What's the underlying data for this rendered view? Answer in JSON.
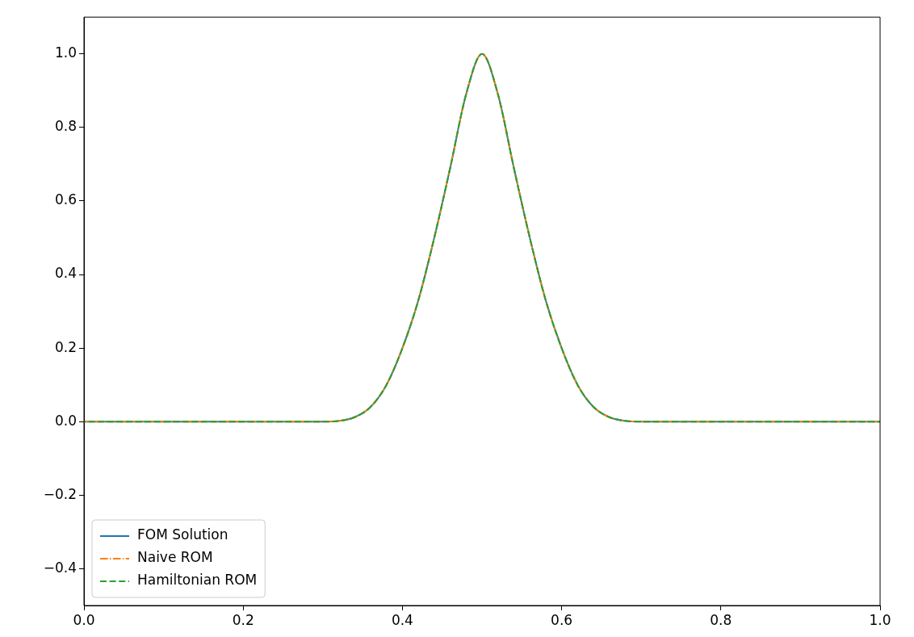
{
  "chart_data": {
    "type": "line",
    "xlim": [
      0,
      1
    ],
    "ylim": [
      -0.5,
      1.1
    ],
    "xticks": [
      {
        "value": 0,
        "label": "0.0"
      },
      {
        "value": 0.2,
        "label": "0.2"
      },
      {
        "value": 0.4,
        "label": "0.4"
      },
      {
        "value": 0.6,
        "label": "0.6"
      },
      {
        "value": 0.8,
        "label": "0.8"
      },
      {
        "value": 1,
        "label": "1.0"
      }
    ],
    "yticks": [
      {
        "value": -0.4,
        "label": "−0.4"
      },
      {
        "value": -0.2,
        "label": "−0.2"
      },
      {
        "value": 0,
        "label": "0.0"
      },
      {
        "value": 0.2,
        "label": "0.2"
      },
      {
        "value": 0.4,
        "label": "0.4"
      },
      {
        "value": 0.6,
        "label": "0.6"
      },
      {
        "value": 0.8,
        "label": "0.8"
      },
      {
        "value": 1,
        "label": "1.0"
      }
    ],
    "x": [
      0,
      0.1,
      0.2,
      0.3,
      0.32,
      0.34,
      0.36,
      0.38,
      0.4,
      0.42,
      0.44,
      0.46,
      0.48,
      0.5,
      0.52,
      0.54,
      0.56,
      0.58,
      0.6,
      0.62,
      0.64,
      0.66,
      0.68,
      0.7,
      0.8,
      0.9,
      1
    ],
    "series": [
      {
        "name": "FOM Solution",
        "color": "#1f77b4",
        "line_style": "solid",
        "values": [
          0,
          0,
          0,
          0,
          0.002,
          0.012,
          0.04,
          0.1,
          0.2,
          0.33,
          0.5,
          0.69,
          0.89,
          1,
          0.89,
          0.69,
          0.5,
          0.33,
          0.2,
          0.1,
          0.04,
          0.012,
          0.002,
          0,
          0,
          0,
          0
        ]
      },
      {
        "name": "Naive ROM",
        "color": "#ff7f0e",
        "line_style": "dashdot",
        "values": [
          0,
          0,
          0,
          0,
          0.002,
          0.012,
          0.04,
          0.1,
          0.2,
          0.33,
          0.5,
          0.69,
          0.89,
          1,
          0.89,
          0.69,
          0.5,
          0.33,
          0.2,
          0.1,
          0.04,
          0.012,
          0.002,
          0,
          0,
          0,
          0
        ]
      },
      {
        "name": "Hamiltonian ROM",
        "color": "#2ca02c",
        "line_style": "dashed",
        "values": [
          0,
          0,
          0,
          0,
          0.002,
          0.012,
          0.04,
          0.1,
          0.2,
          0.33,
          0.5,
          0.69,
          0.89,
          1,
          0.89,
          0.69,
          0.5,
          0.33,
          0.2,
          0.1,
          0.04,
          0.012,
          0.002,
          0,
          0,
          0,
          0
        ]
      }
    ],
    "legend": "bottom left",
    "grid": false,
    "marker": "none"
  }
}
